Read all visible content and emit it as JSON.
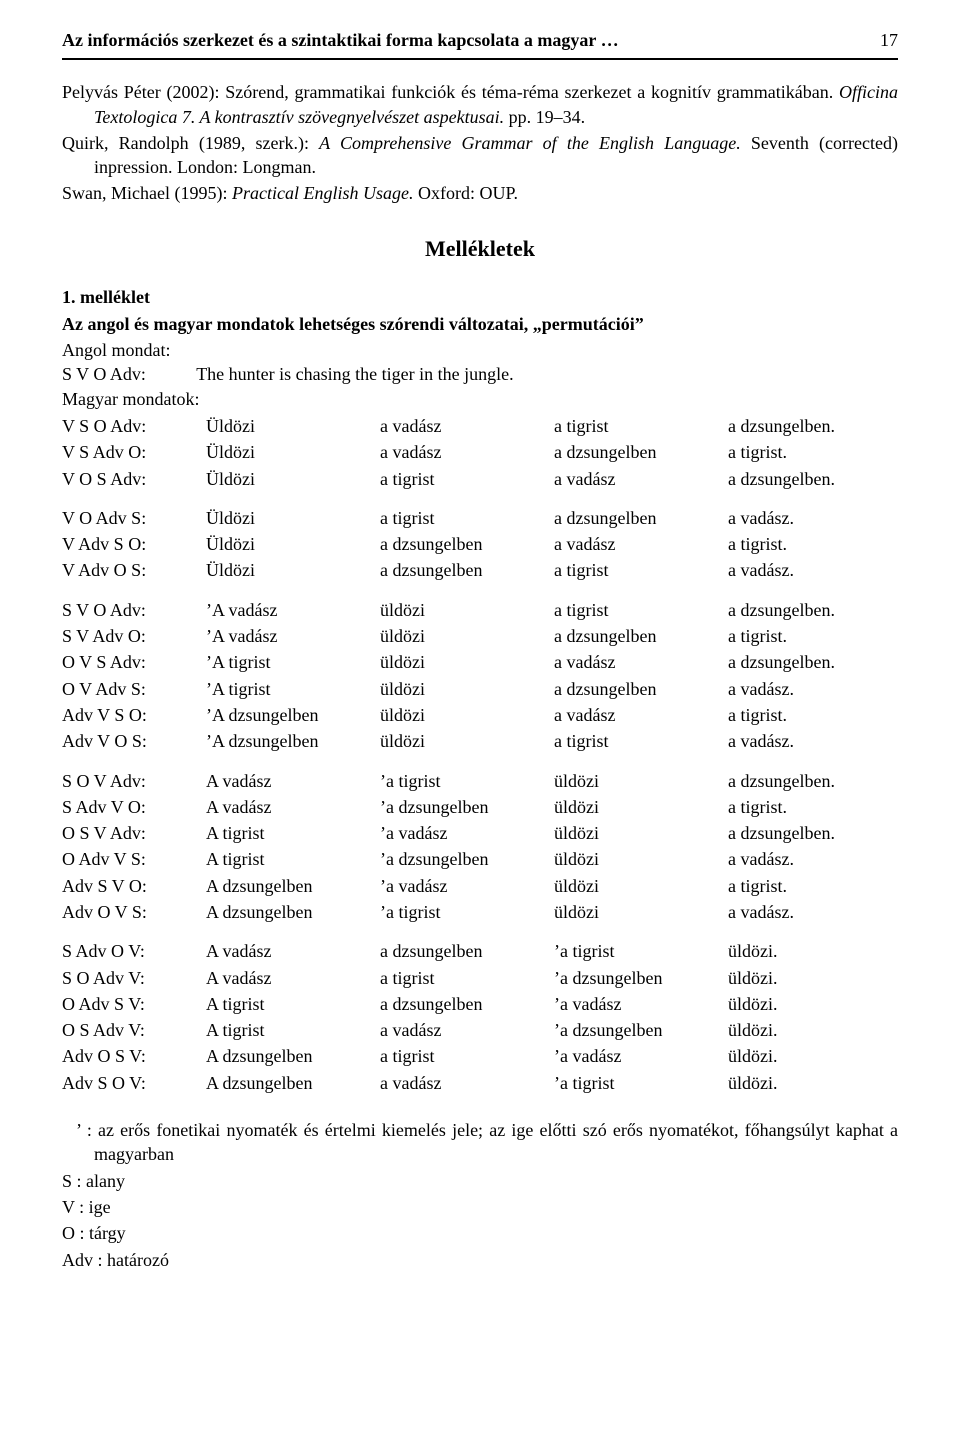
{
  "header": {
    "running_title": "Az információs szerkezet és a szintaktikai forma kapcsolata a magyar …",
    "page_number": "17"
  },
  "refs": {
    "r1": "Pelyvás Péter (2002): Szórend, grammatikai funkciók és téma-réma szerkezet a kognitív grammatikában. <em>Officina Textologica 7. A kontrasztív szövegnyelvészet aspektusai.</em> pp. 19–34.",
    "r2": "Quirk, Randolph (1989, szerk.): <em>A Comprehensive Grammar of the English Language.</em> Seventh (corrected) inpression. London: Longman.",
    "r3": "Swan, Michael (1995): <em>Practical English Usage.</em> Oxford: OUP."
  },
  "mellek": {
    "title": "Mellékletek",
    "sub_num": "1. melléklet",
    "sub_title": "Az angol és magyar mondatok lehetséges szórendi változatai, „permutációi”",
    "angol_label": "Angol mondat:",
    "angol_pat": "S V O Adv:",
    "angol_sentence": "The hunter is chasing the tiger in the jungle.",
    "magyar_label": "Magyar mondatok:"
  },
  "rows": [
    [
      "V S O Adv:",
      "Üldözi",
      "a vadász",
      "a tigrist",
      "a dzsungelben."
    ],
    [
      "V S Adv O:",
      "Üldözi",
      "a vadász",
      "a dzsungelben",
      "a tigrist."
    ],
    [
      "V O S Adv:",
      "Üldözi",
      "a tigrist",
      "a vadász",
      "a dzsungelben."
    ],
    [
      "V O Adv S:",
      "Üldözi",
      "a tigrist",
      "a dzsungelben",
      "a vadász."
    ],
    [
      "V Adv S O:",
      "Üldözi",
      "a dzsungelben",
      "a vadász",
      "a tigrist."
    ],
    [
      "V Adv O S:",
      "Üldözi",
      "a dzsungelben",
      "a tigrist",
      "a vadász."
    ],
    [
      "S V O Adv:",
      "’A vadász",
      "üldözi",
      "a tigrist",
      "a dzsungelben."
    ],
    [
      "S V Adv O:",
      "’A vadász",
      "üldözi",
      "a dzsungelben",
      "a tigrist."
    ],
    [
      "O V S Adv:",
      "’A tigrist",
      "üldözi",
      "a vadász",
      "a dzsungelben."
    ],
    [
      "O V Adv S:",
      "’A tigrist",
      "üldözi",
      "a dzsungelben",
      "a vadász."
    ],
    [
      "Adv V S O:",
      "’A dzsungelben",
      "üldözi",
      "a vadász",
      "a tigrist."
    ],
    [
      "Adv V O S:",
      "’A dzsungelben",
      "üldözi",
      "a tigrist",
      "a vadász."
    ],
    [
      "S O V Adv:",
      "A vadász",
      "’a tigrist",
      "üldözi",
      "a dzsungelben."
    ],
    [
      "S Adv V O:",
      "A vadász",
      "’a dzsungelben",
      "üldözi",
      "a tigrist."
    ],
    [
      "O S V Adv:",
      "A tigrist",
      "’a vadász",
      "üldözi",
      "a dzsungelben."
    ],
    [
      "O Adv V S:",
      "A tigrist",
      "’a dzsungelben",
      "üldözi",
      "a vadász."
    ],
    [
      "Adv S V O:",
      "A dzsungelben",
      "’a vadász",
      "üldözi",
      "a tigrist."
    ],
    [
      "Adv O V S:",
      "A dzsungelben",
      "’a tigrist",
      "üldözi",
      "a vadász."
    ],
    [
      "S Adv O V:",
      "A vadász",
      "a dzsungelben",
      "’a tigrist",
      "üldözi."
    ],
    [
      "S O Adv V:",
      "A vadász",
      "a tigrist",
      "’a dzsungelben",
      "üldözi."
    ],
    [
      "O Adv S V:",
      "A tigrist",
      "a dzsungelben",
      "’a vadász",
      "üldözi."
    ],
    [
      "O S Adv V:",
      "A tigrist",
      "a vadász",
      "’a dzsungelben",
      "üldözi."
    ],
    [
      "Adv O S V:",
      "A dzsungelben",
      "a tigrist",
      "’a vadász",
      "üldözi."
    ],
    [
      "Adv S O V:",
      "A dzsungelben",
      "a vadász",
      "’a tigrist",
      "üldözi."
    ]
  ],
  "group_breaks": [
    3,
    6,
    12,
    18
  ],
  "notes": {
    "n1": "’ : az erős fonetikai nyomaték és értelmi kiemelés jele; az ige előtti szó erős nyomatékot, főhangsúlyt kaphat a magyarban",
    "n2": "S : alany",
    "n3": "V : ige",
    "n4": "O : tárgy",
    "n5": "Adv : határozó"
  }
}
